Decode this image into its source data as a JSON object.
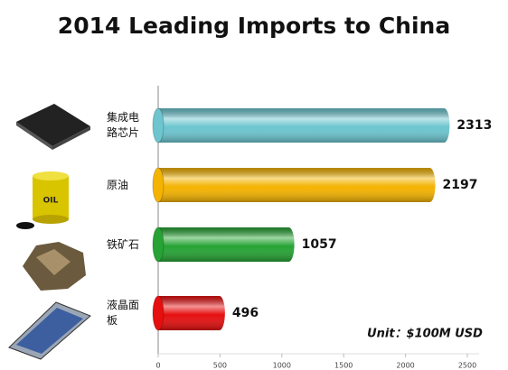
{
  "chart_data": {
    "type": "hbar",
    "title": "2014 Leading Imports to China",
    "categories": [
      "集成电路芯片",
      "原油",
      "铁矿石",
      "液晶面板"
    ],
    "values": [
      2313,
      2197,
      1057,
      496
    ],
    "colors": [
      "#6cc5cf",
      "#f4b300",
      "#26a334",
      "#e60f0f"
    ],
    "xlim": [
      0,
      2500
    ],
    "xticks": [
      0,
      500,
      1000,
      1500,
      2000,
      2500
    ],
    "annotation": "Unit：$100M USD"
  }
}
